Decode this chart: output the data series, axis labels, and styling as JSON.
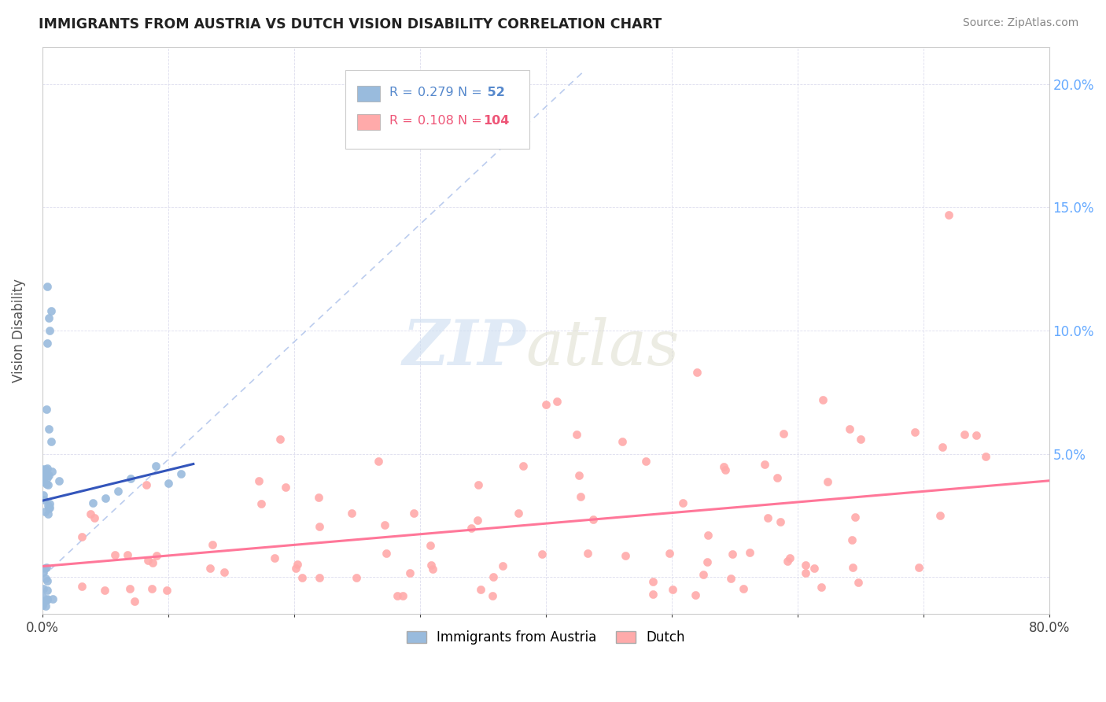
{
  "title": "IMMIGRANTS FROM AUSTRIA VS DUTCH VISION DISABILITY CORRELATION CHART",
  "source": "Source: ZipAtlas.com",
  "ylabel": "Vision Disability",
  "xlim": [
    0.0,
    0.8
  ],
  "ylim": [
    -0.015,
    0.215
  ],
  "xticks": [
    0.0,
    0.1,
    0.2,
    0.3,
    0.4,
    0.5,
    0.6,
    0.7,
    0.8
  ],
  "yticks": [
    0.0,
    0.05,
    0.1,
    0.15,
    0.2
  ],
  "legend_r1": "0.279",
  "legend_n1": "52",
  "legend_r2": "0.108",
  "legend_n2": "104",
  "legend_label1": "Immigrants from Austria",
  "legend_label2": "Dutch",
  "blue_color": "#99BBDD",
  "pink_color": "#FFAAAA",
  "blue_line_color": "#3355BB",
  "pink_line_color": "#FF7799",
  "diag_color": "#BBCCEE",
  "grid_color": "#DDDDEE",
  "watermark_zip_color": "#CCDDF0",
  "watermark_atlas_color": "#DDDDCC",
  "background_color": "#FFFFFF",
  "title_color": "#222222",
  "source_color": "#888888",
  "ylabel_color": "#555555",
  "right_tick_color": "#66AAFF",
  "seed": 99
}
